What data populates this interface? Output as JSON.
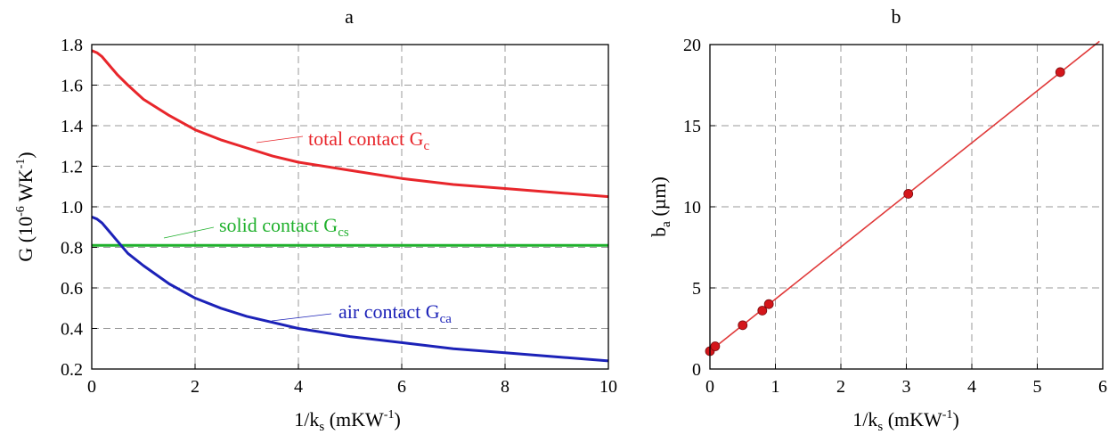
{
  "chart_data": [
    {
      "type": "line",
      "title": "a",
      "xlabel": "1/k",
      "xlabel_sub": "s",
      "xlabel_unit_pre": " (mKW",
      "xlabel_unit_sup": "-1",
      "xlabel_unit_post": ")",
      "ylabel": "G (10",
      "ylabel_sup1": "-6",
      "ylabel_mid": " WK",
      "ylabel_sup2": "-1",
      "ylabel_post": ")",
      "xlim": [
        0,
        10
      ],
      "ylim": [
        0.2,
        1.8
      ],
      "xticks": [
        "0",
        "2",
        "4",
        "6",
        "8",
        "10"
      ],
      "yticks": [
        "0.2",
        "0.4",
        "0.6",
        "0.8",
        "1.0",
        "1.2",
        "1.4",
        "1.6",
        "1.8"
      ],
      "grid": true,
      "series": [
        {
          "name_main": "total contact G",
          "name_sub": "c",
          "color": "#e8262b",
          "x": [
            0,
            0.1,
            0.2,
            0.3,
            0.5,
            0.7,
            1,
            1.5,
            2,
            2.5,
            3,
            3.5,
            4,
            5,
            6,
            7,
            8,
            9,
            10
          ],
          "y": [
            1.77,
            1.76,
            1.74,
            1.71,
            1.65,
            1.6,
            1.53,
            1.45,
            1.38,
            1.33,
            1.29,
            1.25,
            1.22,
            1.18,
            1.14,
            1.11,
            1.09,
            1.07,
            1.05
          ]
        },
        {
          "name_main": "solid contact G",
          "name_sub": "cs",
          "color": "#1fb02c",
          "x": [
            0,
            10
          ],
          "y": [
            0.81,
            0.81
          ]
        },
        {
          "name_main": "air contact G",
          "name_sub": "ca",
          "color": "#1c22b8",
          "x": [
            0,
            0.1,
            0.2,
            0.3,
            0.5,
            0.7,
            1,
            1.5,
            2,
            2.5,
            3,
            3.5,
            4,
            5,
            6,
            7,
            8,
            9,
            10
          ],
          "y": [
            0.95,
            0.94,
            0.92,
            0.89,
            0.83,
            0.77,
            0.71,
            0.62,
            0.55,
            0.5,
            0.46,
            0.43,
            0.4,
            0.36,
            0.33,
            0.3,
            0.28,
            0.26,
            0.24
          ]
        }
      ]
    },
    {
      "type": "scatter",
      "title": "b",
      "xlabel": "1/k",
      "xlabel_sub": "s",
      "xlabel_unit_pre": " (mKW",
      "xlabel_unit_sup": "-1",
      "xlabel_unit_post": ")",
      "ylabel": "b",
      "ylabel_sub": "a",
      "ylabel_post": " (µm)",
      "xlim": [
        0,
        6
      ],
      "ylim": [
        0,
        20
      ],
      "xticks": [
        "0",
        "1",
        "2",
        "3",
        "4",
        "5",
        "6"
      ],
      "yticks": [
        "0",
        "5",
        "10",
        "15",
        "20"
      ],
      "grid": true,
      "points": {
        "color": "#d4161b",
        "x": [
          0.0,
          0.08,
          0.5,
          0.8,
          0.9,
          3.03,
          5.35
        ],
        "y": [
          1.1,
          1.4,
          2.7,
          3.6,
          4.0,
          10.8,
          18.3
        ]
      },
      "fit": {
        "color": "#e03a3a",
        "x": [
          0,
          5.95
        ],
        "y": [
          1.1,
          20.2
        ]
      }
    }
  ]
}
